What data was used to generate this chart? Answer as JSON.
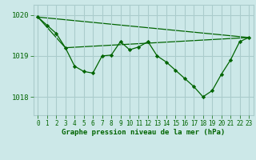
{
  "title": "Graphe pression niveau de la mer (hPa)",
  "bg_color": "#cce8e8",
  "grid_color": "#aacccc",
  "line_color": "#006400",
  "marker_color": "#006400",
  "xlim": [
    -0.5,
    23.5
  ],
  "ylim": [
    1017.55,
    1020.25
  ],
  "yticks": [
    1018,
    1019,
    1020
  ],
  "xticks": [
    0,
    1,
    2,
    3,
    4,
    5,
    6,
    7,
    8,
    9,
    10,
    11,
    12,
    13,
    14,
    15,
    16,
    17,
    18,
    19,
    20,
    21,
    22,
    23
  ],
  "series1_x": [
    0,
    1,
    2,
    3,
    4,
    5,
    6,
    7,
    8,
    9,
    10,
    11,
    12,
    13,
    14,
    15,
    16,
    17,
    18,
    19,
    20,
    21,
    22,
    23
  ],
  "series1_y": [
    1019.95,
    1019.75,
    1019.55,
    1019.2,
    1018.75,
    1018.62,
    1018.58,
    1019.0,
    1019.02,
    1019.35,
    1019.15,
    1019.22,
    1019.35,
    1019.0,
    1018.85,
    1018.65,
    1018.45,
    1018.25,
    1018.0,
    1018.15,
    1018.55,
    1018.9,
    1019.35,
    1019.45
  ],
  "series2_x": [
    0,
    23
  ],
  "series2_y": [
    1019.95,
    1019.45
  ],
  "series3_x": [
    0,
    3,
    23
  ],
  "series3_y": [
    1019.95,
    1019.2,
    1019.45
  ]
}
